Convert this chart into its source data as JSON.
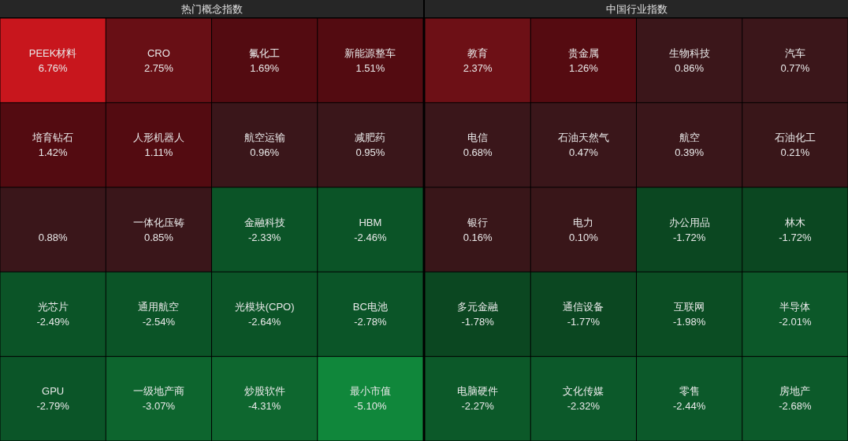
{
  "chart_data": [
    {
      "type": "other",
      "title": "热门概念指数",
      "categories": [
        "PEEK材料",
        "CRO",
        "氟化工",
        "新能源整车",
        "培育钻石",
        "人形机器人",
        "航空运输",
        "减肥药",
        null,
        "一体化压铸",
        "金融科技",
        "HBM",
        "光芯片",
        "通用航空",
        "光模块(CPO)",
        "BC电池",
        "GPU",
        "一级地产商",
        "炒股软件",
        "最小市值"
      ],
      "values": [
        6.76,
        2.75,
        1.69,
        1.51,
        1.42,
        1.11,
        0.96,
        0.95,
        0.88,
        0.85,
        -2.33,
        -2.46,
        -2.49,
        -2.54,
        -2.64,
        -2.78,
        -2.79,
        -3.07,
        -4.31,
        -5.1
      ],
      "value_labels": [
        "6.76%",
        "2.75%",
        "1.69%",
        "1.51%",
        "1.42%",
        "1.11%",
        "0.96%",
        "0.95%",
        "0.88%",
        "0.85%",
        "-2.33%",
        "-2.46%",
        "-2.49%",
        "-2.54%",
        "-2.64%",
        "-2.78%",
        "-2.79%",
        "-3.07%",
        "-4.31%",
        "-5.10%"
      ],
      "colors": [
        "#c8161d",
        "#6e1016",
        "#5a0c12",
        "#5a0c12",
        "#5a0c12",
        "#5a0c12",
        "#3f181c",
        "#3f181c",
        "#3f181c",
        "#3f181c",
        "#0c5a2a",
        "#0c5a2a",
        "#0c5a2a",
        "#0c5a2a",
        "#0c5a2a",
        "#0c5a2a",
        "#0c5a2a",
        "#0e6b31",
        "#0e6b31",
        "#108a3c"
      ]
    },
    {
      "type": "other",
      "title": "中国行业指数",
      "categories": [
        "教育",
        "贵金属",
        "生物科技",
        "汽车",
        "电信",
        "石油天然气",
        "航空",
        "石油化工",
        "银行",
        "电力",
        "办公用品",
        "林木",
        "多元金融",
        "通信设备",
        "互联网",
        "半导体",
        "电脑硬件",
        "文化传媒",
        "零售",
        "房地产"
      ],
      "values": [
        2.37,
        1.26,
        0.86,
        0.77,
        0.68,
        0.47,
        0.39,
        0.21,
        0.16,
        0.1,
        -1.72,
        -1.72,
        -1.78,
        -1.77,
        -1.98,
        -2.01,
        -2.27,
        -2.32,
        -2.44,
        -2.68
      ],
      "value_labels": [
        "2.37%",
        "1.26%",
        "0.86%",
        "0.77%",
        "0.68%",
        "0.47%",
        "0.39%",
        "0.21%",
        "0.16%",
        "0.10%",
        "-1.72%",
        "-1.72%",
        "-1.78%",
        "-1.77%",
        "-1.98%",
        "-2.01%",
        "-2.27%",
        "-2.32%",
        "-2.44%",
        "-2.68%"
      ],
      "colors": [
        "#6e1016",
        "#5a0c12",
        "#3f181c",
        "#3f181c",
        "#3f181c",
        "#3f181c",
        "#3f181c",
        "#3f181c",
        "#3f181c",
        "#3f181c",
        "#0b4a22",
        "#0b4a22",
        "#0b4a22",
        "#0b4a22",
        "#0b4f24",
        "#0c5a2a",
        "#0c5a2a",
        "#0c5a2a",
        "#0c5a2a",
        "#0c5a2a"
      ]
    }
  ]
}
